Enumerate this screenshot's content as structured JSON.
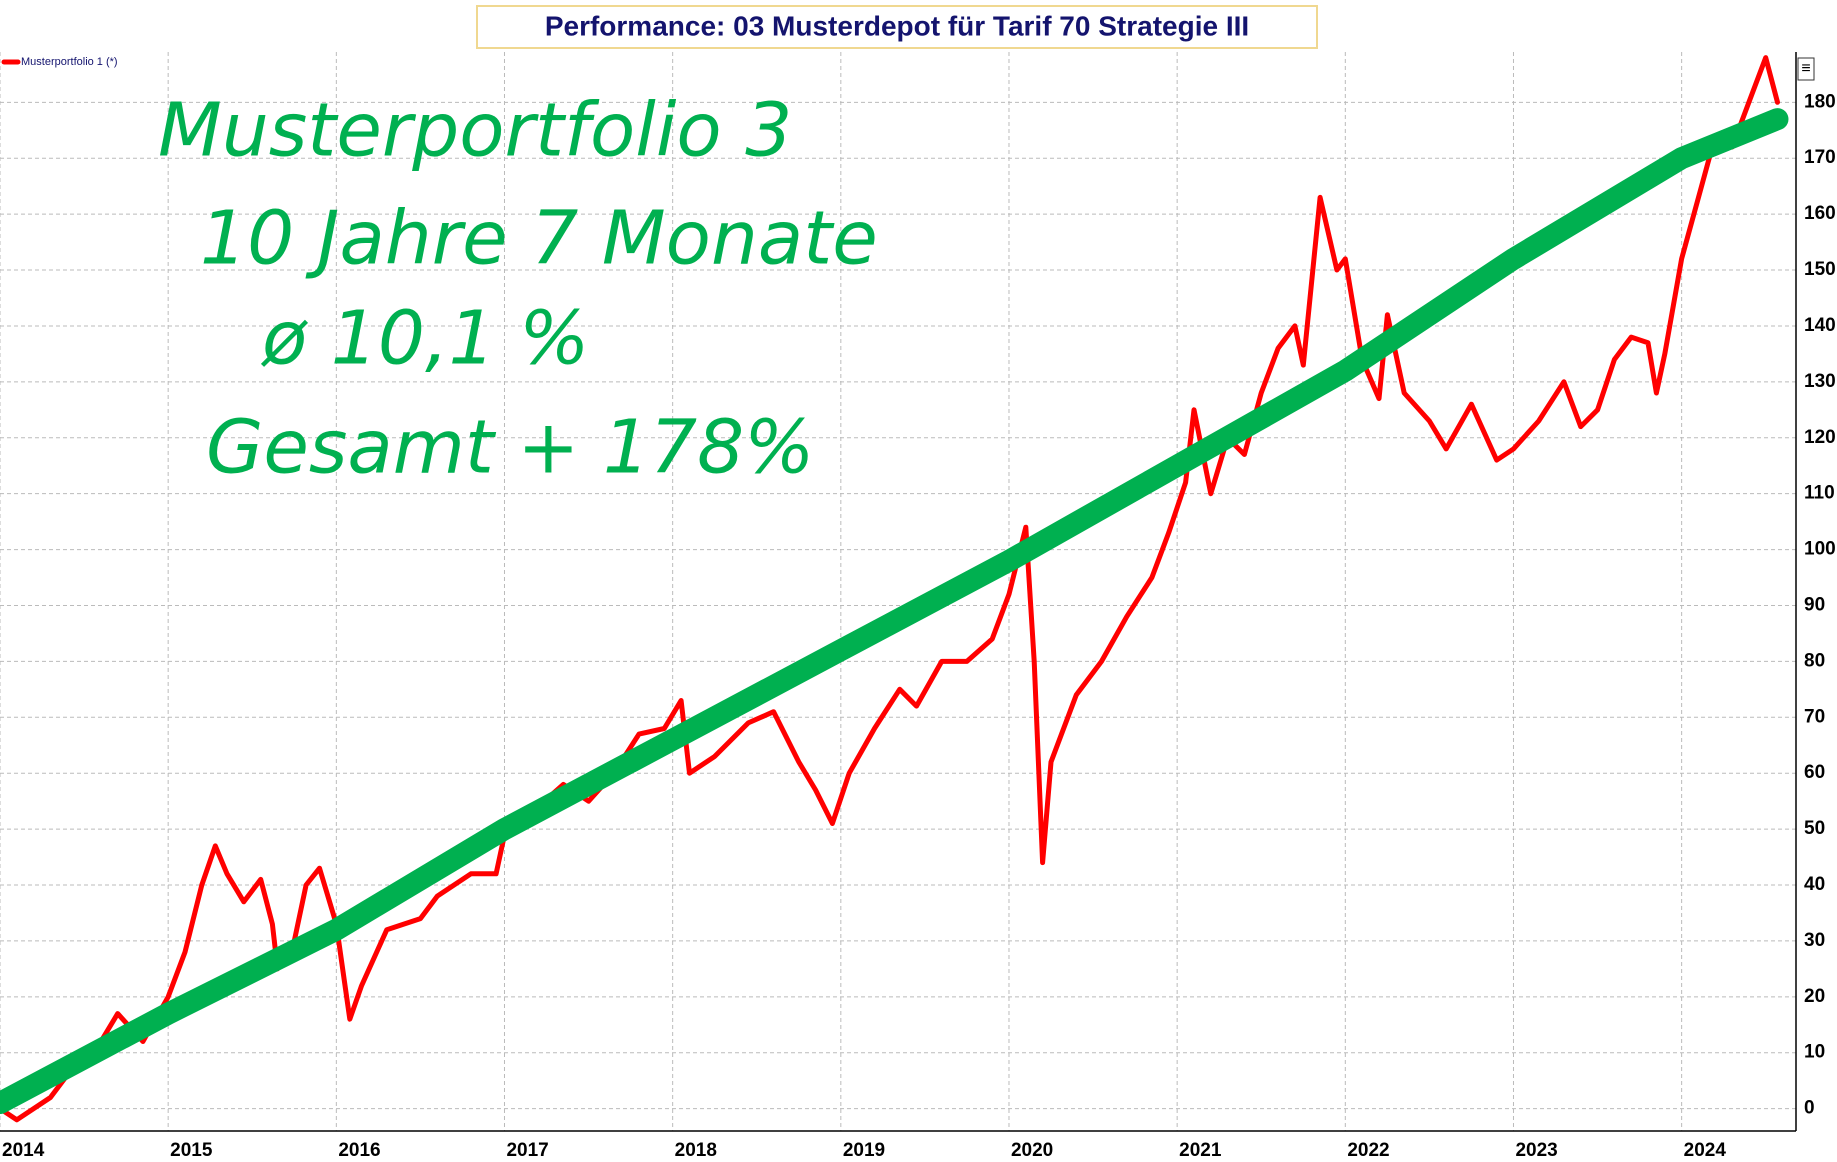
{
  "chart_data": {
    "type": "line",
    "title": "Performance: 03 Musterdepot für Tarif 70 Strategie III",
    "annotations": [
      "Musterportfolio 3",
      "10 Jahre 7 Monate",
      "ø 10,1 %",
      "Gesamt + 178%"
    ],
    "xlim": [
      2014,
      2024.68
    ],
    "xticks": [
      2014,
      2015,
      2016,
      2017,
      2018,
      2019,
      2020,
      2021,
      2022,
      2023,
      2024
    ],
    "ylim": [
      -4,
      189
    ],
    "yticks": [
      0,
      10,
      20,
      30,
      40,
      50,
      60,
      70,
      80,
      90,
      100,
      110,
      120,
      130,
      140,
      150,
      160,
      170,
      180
    ],
    "grid": true,
    "legend": "top-left",
    "series": [
      {
        "name": "Musterportfolio 1 (*)",
        "color": "#ff0000",
        "x": [
          2014.0,
          2014.1,
          2014.3,
          2014.45,
          2014.6,
          2014.7,
          2014.85,
          2015.0,
          2015.1,
          2015.2,
          2015.28,
          2015.35,
          2015.45,
          2015.55,
          2015.62,
          2015.65,
          2015.75,
          2015.82,
          2015.9,
          2016.0,
          2016.08,
          2016.15,
          2016.3,
          2016.5,
          2016.6,
          2016.8,
          2016.95,
          2017.0,
          2017.2,
          2017.35,
          2017.5,
          2017.65,
          2017.8,
          2017.95,
          2018.05,
          2018.1,
          2018.25,
          2018.45,
          2018.6,
          2018.75,
          2018.85,
          2018.95,
          2019.05,
          2019.2,
          2019.35,
          2019.45,
          2019.6,
          2019.75,
          2019.9,
          2020.0,
          2020.1,
          2020.15,
          2020.2,
          2020.25,
          2020.4,
          2020.55,
          2020.7,
          2020.85,
          2020.95,
          2021.05,
          2021.1,
          2021.2,
          2021.3,
          2021.4,
          2021.5,
          2021.6,
          2021.7,
          2021.75,
          2021.85,
          2021.95,
          2022.0,
          2022.1,
          2022.2,
          2022.25,
          2022.35,
          2022.5,
          2022.6,
          2022.75,
          2022.9,
          2023.0,
          2023.15,
          2023.3,
          2023.4,
          2023.5,
          2023.6,
          2023.7,
          2023.8,
          2023.85,
          2023.9,
          2024.0,
          2024.1,
          2024.2,
          2024.3,
          2024.4,
          2024.5,
          2024.57
        ],
        "values": [
          0,
          -2,
          2,
          8,
          12,
          17,
          12,
          20,
          28,
          40,
          47,
          42,
          37,
          41,
          33,
          25,
          30,
          40,
          43,
          33,
          16,
          22,
          32,
          34,
          38,
          42,
          42,
          49,
          54,
          58,
          55,
          60,
          67,
          68,
          73,
          60,
          63,
          69,
          71,
          62,
          57,
          51,
          60,
          68,
          75,
          72,
          80,
          80,
          84,
          92,
          104,
          80,
          44,
          62,
          74,
          80,
          88,
          95,
          103,
          112,
          125,
          110,
          120,
          117,
          128,
          136,
          140,
          133,
          163,
          150,
          152,
          134,
          127,
          142,
          128,
          123,
          118,
          126,
          116,
          118,
          123,
          130,
          122,
          125,
          134,
          138,
          137,
          128,
          135,
          152,
          163,
          174,
          172,
          180,
          188,
          180
        ]
      },
      {
        "color": "#00b050",
        "x": [
          2014,
          2015,
          2016,
          2017,
          2018,
          2019,
          2020,
          2021,
          2022,
          2023,
          2024,
          2024.57
        ],
        "values": [
          1,
          17,
          32,
          50,
          66,
          82,
          98,
          115,
          132,
          152,
          170,
          177
        ]
      }
    ]
  }
}
